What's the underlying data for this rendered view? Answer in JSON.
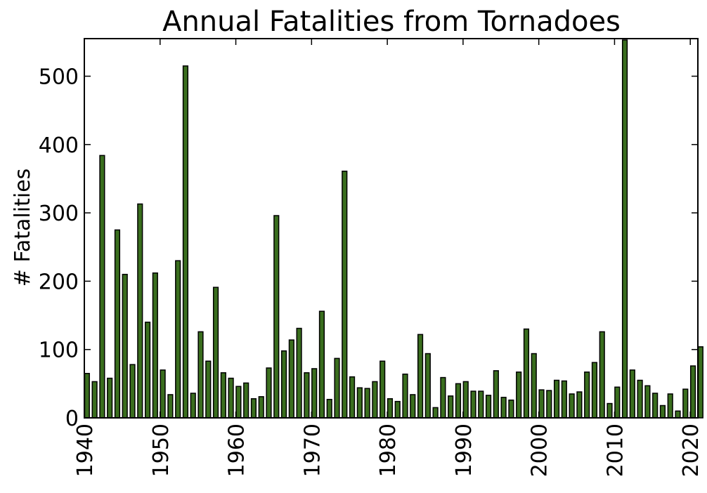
{
  "chart_data": {
    "type": "bar",
    "title": "Annual Fatalities from Tornadoes",
    "xlabel": "",
    "ylabel": "# Fatalities",
    "xlim": [
      1940,
      2021
    ],
    "ylim": [
      0,
      555
    ],
    "grid": false,
    "legend": "none",
    "bar_color": "#3a6e1e",
    "x_ticks": [
      "1940",
      "1950",
      "1960",
      "1970",
      "1980",
      "1990",
      "2000",
      "2010",
      "2020"
    ],
    "y_ticks": [
      "0",
      "100",
      "200",
      "300",
      "400",
      "500"
    ],
    "x": [
      1940,
      1941,
      1942,
      1943,
      1944,
      1945,
      1946,
      1947,
      1948,
      1949,
      1950,
      1951,
      1952,
      1953,
      1954,
      1955,
      1956,
      1957,
      1958,
      1959,
      1960,
      1961,
      1962,
      1963,
      1964,
      1965,
      1966,
      1967,
      1968,
      1969,
      1970,
      1971,
      1972,
      1973,
      1974,
      1975,
      1976,
      1977,
      1978,
      1979,
      1980,
      1981,
      1982,
      1983,
      1984,
      1985,
      1986,
      1987,
      1988,
      1989,
      1990,
      1991,
      1992,
      1993,
      1994,
      1995,
      1996,
      1997,
      1998,
      1999,
      2000,
      2001,
      2002,
      2003,
      2004,
      2005,
      2006,
      2007,
      2008,
      2009,
      2010,
      2011,
      2012,
      2013,
      2014,
      2015,
      2016,
      2017,
      2018,
      2019,
      2020,
      2021
    ],
    "values": [
      65,
      53,
      384,
      58,
      275,
      210,
      78,
      313,
      140,
      212,
      70,
      34,
      230,
      515,
      36,
      126,
      83,
      191,
      66,
      58,
      46,
      51,
      28,
      31,
      73,
      296,
      98,
      114,
      131,
      66,
      72,
      156,
      27,
      87,
      361,
      60,
      44,
      43,
      53,
      83,
      28,
      24,
      64,
      34,
      122,
      94,
      15,
      59,
      32,
      50,
      53,
      39,
      39,
      33,
      69,
      30,
      26,
      67,
      130,
      94,
      41,
      40,
      55,
      54,
      35,
      38,
      67,
      81,
      126,
      21,
      45,
      553,
      70,
      55,
      47,
      36,
      18,
      35,
      10,
      42,
      76,
      104
    ]
  }
}
